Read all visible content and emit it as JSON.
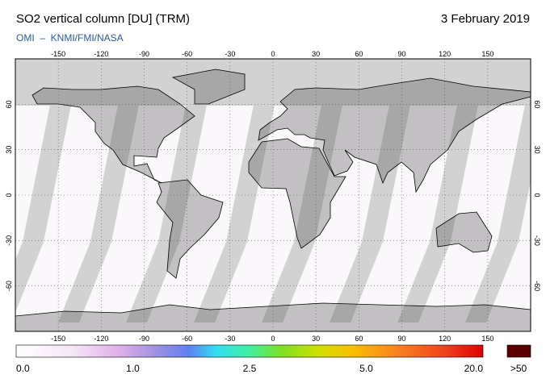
{
  "header": {
    "title": "SO2 vertical column [DU] (TRM)",
    "date": "3 February 2019",
    "source": "OMI  –  KNMI/FMI/NASA"
  },
  "map": {
    "longitude_labels": [
      -150,
      -120,
      -90,
      -60,
      -30,
      0,
      30,
      60,
      90,
      120,
      150
    ],
    "latitude_labels": [
      60,
      30,
      0,
      -30,
      -60
    ]
  },
  "colorbar": {
    "labels": [
      "0.0",
      "1.0",
      "2.5",
      "5.0",
      "20.0"
    ],
    "overflow_label": ">50"
  }
}
